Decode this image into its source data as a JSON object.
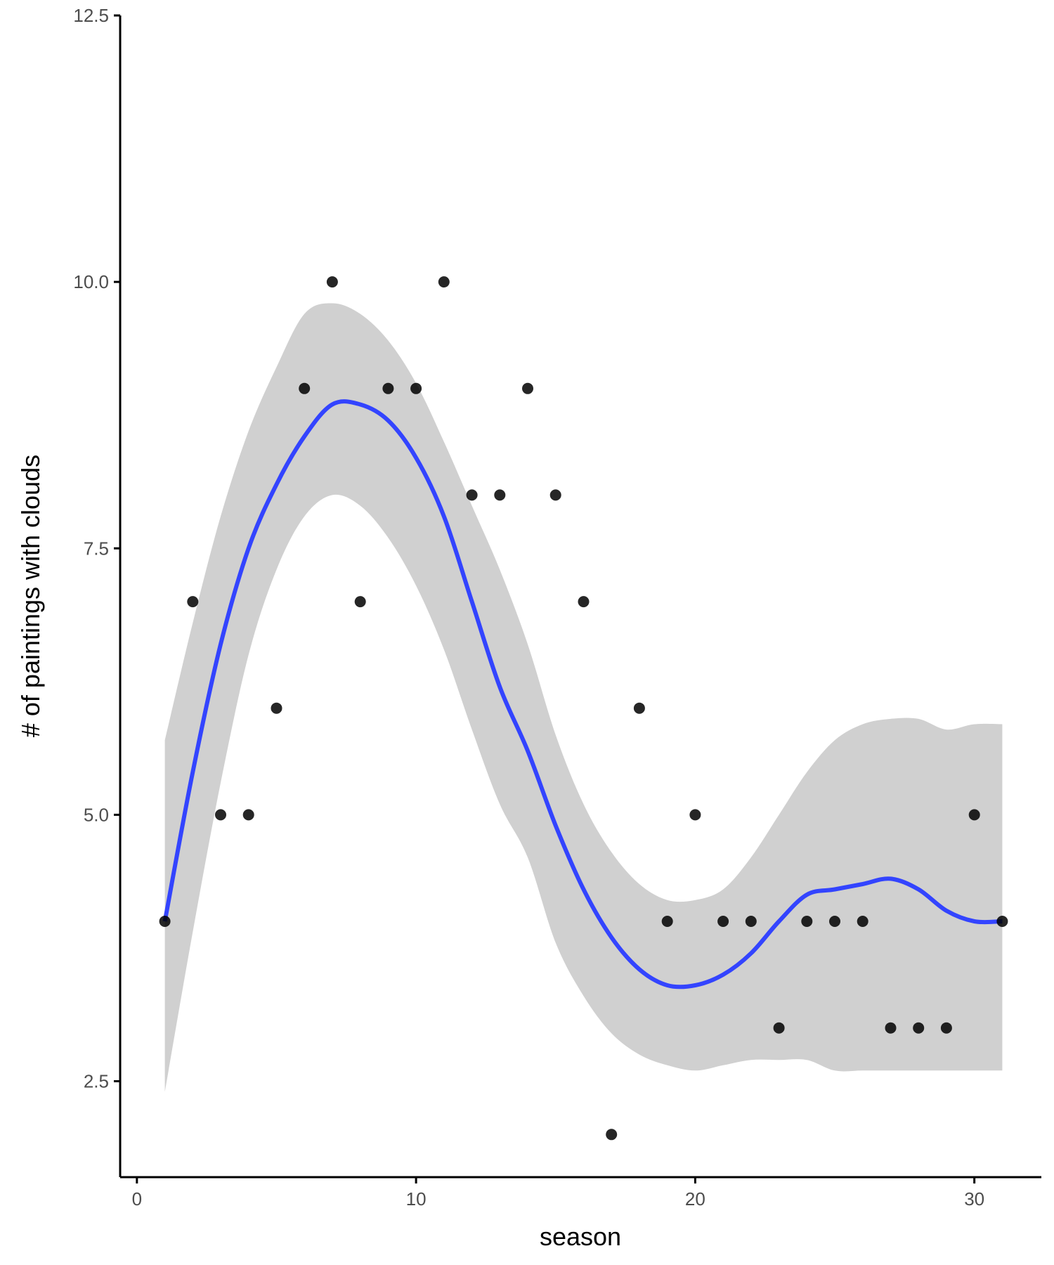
{
  "chart_data": {
    "type": "scatter",
    "title": "",
    "xlabel": "season",
    "ylabel": "# of paintings with clouds",
    "xlim": [
      -0.6,
      32.4
    ],
    "ylim": [
      1.6,
      12.5
    ],
    "x_ticks": [
      0,
      10,
      20,
      30
    ],
    "x_tick_labels": [
      "0",
      "10",
      "20",
      "30"
    ],
    "y_ticks": [
      2.5,
      5.0,
      7.5,
      10.0,
      12.5
    ],
    "y_tick_labels": [
      "2.5",
      "5.0",
      "7.5",
      "10.0",
      "12.5"
    ],
    "grid": false,
    "legend": "none",
    "series": [
      {
        "kind": "points",
        "x": [
          1,
          2,
          3,
          4,
          5,
          6,
          7,
          8,
          9,
          10,
          11,
          12,
          13,
          14,
          15,
          16,
          17,
          18,
          19,
          20,
          21,
          22,
          23,
          24,
          25,
          26,
          27,
          28,
          29,
          30,
          31
        ],
        "y": [
          4,
          7,
          5,
          5,
          6,
          9,
          10,
          7,
          9,
          9,
          10,
          8,
          8,
          9,
          8,
          7,
          2,
          6,
          4,
          5,
          4,
          4,
          3,
          4,
          4,
          4,
          3,
          3,
          3,
          5,
          4
        ]
      },
      {
        "kind": "smooth",
        "x": [
          1,
          2,
          3,
          4,
          5,
          6,
          7,
          8,
          9,
          10,
          11,
          12,
          13,
          14,
          15,
          16,
          17,
          18,
          19,
          20,
          21,
          22,
          23,
          24,
          25,
          26,
          27,
          28,
          29,
          30,
          31
        ],
        "y": [
          4.0,
          5.4,
          6.6,
          7.5,
          8.1,
          8.55,
          8.85,
          8.85,
          8.7,
          8.35,
          7.8,
          7.0,
          6.2,
          5.6,
          4.9,
          4.3,
          3.85,
          3.55,
          3.4,
          3.4,
          3.5,
          3.7,
          4.0,
          4.25,
          4.3,
          4.35,
          4.4,
          4.3,
          4.1,
          4.0,
          4.0
        ],
        "ci_lower": [
          2.4,
          3.9,
          5.3,
          6.5,
          7.3,
          7.8,
          8.0,
          7.9,
          7.6,
          7.15,
          6.55,
          5.8,
          5.1,
          4.6,
          3.8,
          3.3,
          2.95,
          2.75,
          2.65,
          2.6,
          2.65,
          2.7,
          2.7,
          2.7,
          2.6,
          2.6,
          2.6,
          2.6,
          2.6,
          2.6,
          2.6
        ],
        "ci_upper": [
          5.7,
          6.8,
          7.8,
          8.6,
          9.2,
          9.7,
          9.8,
          9.7,
          9.45,
          9.05,
          8.5,
          7.9,
          7.3,
          6.6,
          5.75,
          5.1,
          4.65,
          4.35,
          4.2,
          4.2,
          4.3,
          4.6,
          5.0,
          5.4,
          5.7,
          5.85,
          5.9,
          5.9,
          5.8,
          5.85,
          5.85
        ],
        "color": "#3344ff",
        "band_color": "#d0d0d0"
      }
    ]
  }
}
